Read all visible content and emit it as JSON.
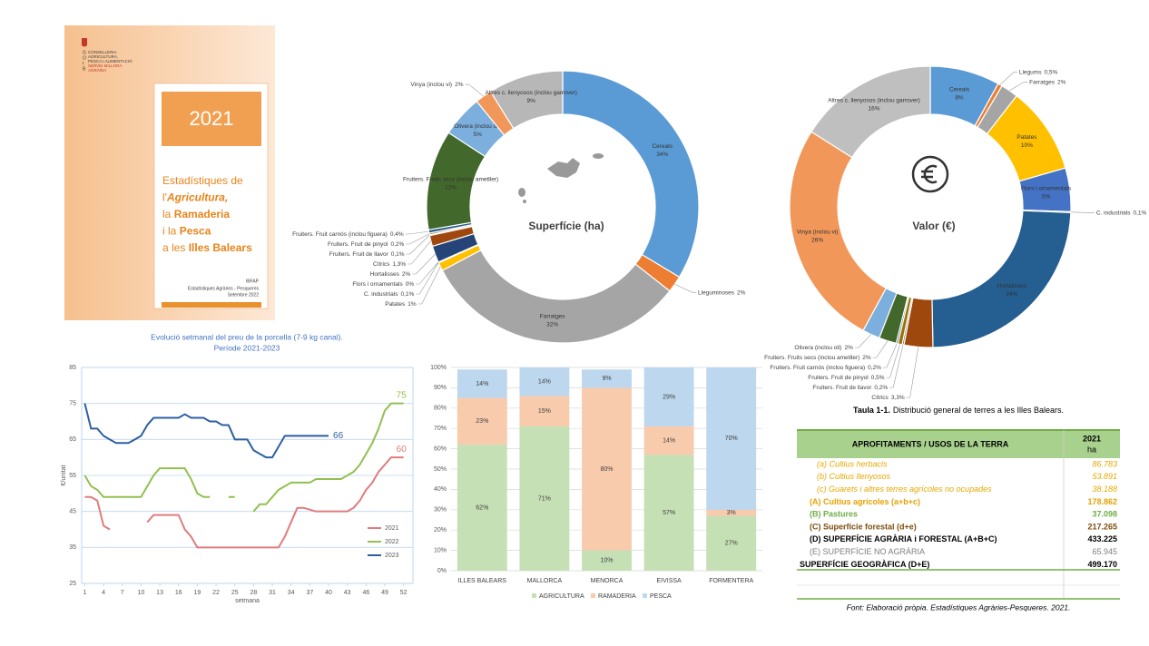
{
  "cover": {
    "logo_letters": [
      "G",
      "O",
      "I",
      "B"
    ],
    "department": [
      "CONSELLERIA",
      "AGRICULTURA,",
      "PESCA I ALIMENTACIÓ"
    ],
    "service": [
      "SERVEI MILLORA",
      "AGRÀRIA"
    ],
    "year": "2021",
    "title_lines": [
      [
        "Estadístiques de"
      ],
      [
        "l'",
        "Agricultura,"
      ],
      [
        "la ",
        "Ramaderia"
      ],
      [
        "i la ",
        "Pesca"
      ],
      [
        "a les ",
        "Illes Balears"
      ]
    ],
    "publisher": "IBFAP",
    "series_name": "Estadístiques Agràries - Pesqueres",
    "date": "Setembre 2022"
  },
  "chart_data": [
    {
      "type": "pie",
      "title": "Superfície (ha)",
      "categories": [
        "Cereals",
        "Lleguminoses",
        "Farratges",
        "Patates",
        "C. industrials",
        "Flors i ornamentals",
        "Hortalisses",
        "Cítrics",
        "Fruiters. Fruit de llavor",
        "Fruiters. Fruit de pinyol",
        "Fruiters. Fruit carnós (inclou figuera)",
        "Fruiters. Fruits secs (inclou ametller)",
        "Olivera (inclou oli)",
        "Vinya (inclou vi)",
        "Altres c. llenyosos (inclou garrover)"
      ],
      "values": [
        34,
        2,
        32,
        1,
        0.1,
        0,
        2,
        1.3,
        0.1,
        0.2,
        0.4,
        12,
        5,
        2,
        9
      ],
      "value_labels": [
        "34%",
        "2%",
        "32%",
        "1%",
        "0,1%",
        "0%",
        "2%",
        "1,3%",
        "0,1%",
        "0,2%",
        "0,4%",
        "12%",
        "5%",
        "2%",
        "9%"
      ],
      "colors": [
        "#5b9bd5",
        "#ed7d31",
        "#a5a5a5",
        "#ffc000",
        "#4472c4",
        "#70ad47",
        "#264478",
        "#9e480e",
        "#636363",
        "#997300",
        "#255e91",
        "#43682b",
        "#7cafdd",
        "#f1975a",
        "#b7b7b7"
      ]
    },
    {
      "type": "pie",
      "title": "Valor (€)",
      "categories": [
        "Cereals",
        "Llegums",
        "Farratges",
        "Patates",
        "Flors i ornamentals",
        "C. industrials",
        "Hortalisses",
        "Cítrics",
        "Fruiters. Fruit de llavor",
        "Fruiters. Fruit de pinyol",
        "Fruiters. Fruit carnós (inclou figuera)",
        "Fruiters. Fruits secs (inclou ametller)",
        "Olivera (inclou oli)",
        "Vinya (inclou vi)",
        "Altres c. llenyosos (inclou garrover)"
      ],
      "values": [
        8,
        0.5,
        2,
        10,
        5,
        0.1,
        24,
        3.3,
        0.2,
        0.5,
        0.2,
        2,
        2,
        26,
        16
      ],
      "value_labels": [
        "8%",
        "0,5%",
        "2%",
        "10%",
        "5%",
        "0,1%",
        "24%",
        "3,3%",
        "0,2%",
        "0,5%",
        "0,2%",
        "2%",
        "2%",
        "26%",
        "16%"
      ],
      "colors": [
        "#5b9bd5",
        "#ed7d31",
        "#a5a5a5",
        "#ffc000",
        "#4472c4",
        "#70ad47",
        "#255e91",
        "#9e480e",
        "#636363",
        "#997300",
        "#264478",
        "#43682b",
        "#7cafdd",
        "#f1975a",
        "#bfbfbf"
      ]
    },
    {
      "type": "line",
      "title": "Evolució setmanal del preu de la porcella (7-9 kg canal).",
      "subtitle": "Període 2021-2023",
      "xlabel": "setmana",
      "ylabel": "€/unitat",
      "x": [
        1,
        2,
        3,
        4,
        5,
        6,
        7,
        8,
        9,
        10,
        11,
        12,
        13,
        14,
        15,
        16,
        17,
        18,
        19,
        20,
        21,
        22,
        23,
        24,
        25,
        26,
        27,
        28,
        29,
        30,
        31,
        32,
        33,
        34,
        35,
        36,
        37,
        38,
        39,
        40,
        41,
        42,
        43,
        44,
        45,
        46,
        47,
        48,
        49,
        50,
        51,
        52
      ],
      "xlim": [
        0.5,
        53.5
      ],
      "xticks": [
        1,
        4,
        7,
        10,
        13,
        16,
        19,
        22,
        25,
        28,
        31,
        34,
        37,
        40,
        43,
        46,
        49,
        52
      ],
      "ylim": [
        25,
        85
      ],
      "yticks": [
        25,
        35,
        45,
        55,
        65,
        75,
        85
      ],
      "grid": true,
      "legend": "right",
      "series": [
        {
          "name": "2021",
          "color": "#e07c7c",
          "values": [
            49,
            49,
            48,
            41,
            40,
            null,
            null,
            null,
            null,
            null,
            42,
            44,
            44,
            44,
            44,
            44,
            40,
            38,
            35,
            35,
            35,
            35,
            35,
            35,
            35,
            35,
            35,
            35,
            35,
            35,
            35,
            35,
            38,
            42,
            46,
            46,
            45.5,
            45,
            45,
            45,
            45,
            45,
            45,
            46,
            48,
            51,
            53,
            56,
            58,
            60,
            60,
            60
          ]
        },
        {
          "name": "2022",
          "color": "#92c050",
          "values": [
            55,
            52,
            51,
            49,
            49,
            49,
            49,
            49,
            49,
            49,
            52,
            55,
            57,
            57,
            57,
            57,
            57,
            54,
            50,
            49,
            49,
            null,
            null,
            49,
            49,
            null,
            null,
            45,
            47,
            47,
            49,
            51,
            52,
            53,
            53,
            53,
            53,
            54,
            54,
            54,
            54,
            54,
            55,
            56,
            58,
            61,
            64,
            68,
            73,
            75,
            75,
            75
          ]
        },
        {
          "name": "2023",
          "color": "#2e5fa3",
          "values": [
            75,
            68,
            68,
            66,
            65,
            64,
            64,
            64,
            65,
            66,
            69,
            71,
            71,
            71,
            71,
            71,
            72,
            71,
            71,
            71,
            70,
            70,
            69,
            69,
            65,
            65,
            65,
            62,
            61,
            60,
            60,
            63,
            66,
            66,
            66,
            66,
            66,
            66,
            66,
            66,
            null,
            null,
            null,
            null,
            null,
            null,
            null,
            null,
            null,
            null,
            null,
            null
          ]
        }
      ]
    },
    {
      "type": "bar",
      "stacked": true,
      "categories": [
        "ILLES BALEARS",
        "MALLORCA",
        "MENORCA",
        "EIVISSA",
        "FORMENTERA"
      ],
      "ylim": [
        0,
        100
      ],
      "yticks": [
        {
          "value": 0,
          "label": "0%"
        },
        {
          "value": 10,
          "label": "10%"
        },
        {
          "value": 20,
          "label": "20%"
        },
        {
          "value": 30,
          "label": "30%"
        },
        {
          "value": 40,
          "label": "40%"
        },
        {
          "value": 50,
          "label": "50%"
        },
        {
          "value": 60,
          "label": "60%"
        },
        {
          "value": 70,
          "label": "70%"
        },
        {
          "value": 80,
          "label": "80%"
        },
        {
          "value": 90,
          "label": "90%"
        },
        {
          "value": 100,
          "label": "100%"
        }
      ],
      "grid": true,
      "legend": "bottom",
      "series": [
        {
          "name": "AGRICULTURA",
          "color": "#c5e0b4",
          "values": [
            62,
            71,
            10,
            57,
            27
          ],
          "value_labels": [
            "62%",
            "71%",
            "10%",
            "57%",
            "27%"
          ]
        },
        {
          "name": "RAMADERIA",
          "color": "#f8cbad",
          "values": [
            23,
            15,
            80,
            14,
            3
          ],
          "value_labels": [
            "23%",
            "15%",
            "80%",
            "14%",
            "3%"
          ]
        },
        {
          "name": "PESCA",
          "color": "#bdd7ee",
          "values": [
            14,
            14,
            9,
            29,
            70
          ],
          "value_labels": [
            "14%",
            "14%",
            "9%",
            "29%",
            "70%"
          ]
        }
      ]
    }
  ],
  "table": {
    "caption_label": "Taula 1-1.",
    "caption": "Distribució general de terres a les Illes Balears.",
    "header": [
      "APROFITAMENTS / USOS DE LA TERRA",
      "2021",
      "ha"
    ],
    "rows": [
      [
        "(a) Cultius herbacis",
        "86.783"
      ],
      [
        "(b) Cultius llenyosos",
        "53.891"
      ],
      [
        "(c) Guarets i altres terres agrícoles no ocupades",
        "38.188"
      ],
      [
        "(A) Cultius agrícoles (a+b+c)",
        "178.862"
      ],
      [
        "(B) Pastures",
        "37.098"
      ],
      [
        "(C) Superfície forestal (d+e)",
        "217.265"
      ],
      [
        "(D) SUPERFÍCIE AGRÀRIA i FORESTAL (A+B+C)",
        "433.225"
      ],
      [
        "(E) SUPERFÍCIE NO AGRÀRIA",
        "65.945"
      ],
      [
        "SUPERFÍCIE GEOGRÀFICA (D+E)",
        "499.170"
      ]
    ],
    "source": "Font: Elaboració pròpia. Estadístiques Agràries-Pesqueres. 2021."
  }
}
